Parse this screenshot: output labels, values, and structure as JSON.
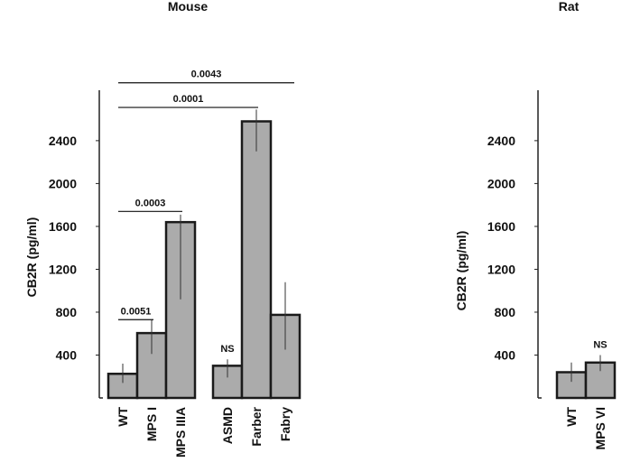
{
  "chart_data": [
    {
      "type": "bar",
      "title": "Mouse",
      "ylabel": "CB2R (pg/ml)",
      "yticks": [
        400,
        800,
        1200,
        1600,
        2000,
        2400
      ],
      "ylim": [
        0,
        2900
      ],
      "categories": [
        "WT",
        "MPS I",
        "MPS IIIA",
        "ASMD",
        "Farber",
        "Fabry"
      ],
      "values": [
        225,
        605,
        1640,
        300,
        2580,
        775
      ],
      "error_low": [
        140,
        410,
        920,
        190,
        2300,
        450
      ],
      "error_high": [
        320,
        730,
        1710,
        360,
        2690,
        1080
      ],
      "bar_labels": [
        "",
        "",
        "",
        "NS",
        "",
        ""
      ],
      "comparisons": [
        {
          "from": "WT",
          "to": "MPS I",
          "label": "0.0051",
          "y": 730
        },
        {
          "from": "WT",
          "to": "MPS IIIA",
          "label": "0.0003",
          "y": 1740
        },
        {
          "from": "WT",
          "to": "Farber",
          "label": "0.0001",
          "y": 2710
        },
        {
          "from": "WT",
          "to": "Fabry",
          "label": "0.0043",
          "y": 2940
        }
      ]
    },
    {
      "type": "bar",
      "title": "Rat",
      "ylabel": "CB2R (pg/ml)",
      "yticks": [
        400,
        800,
        1200,
        1600,
        2000,
        2400
      ],
      "ylim": [
        0,
        2900
      ],
      "categories": [
        "WT",
        "MPS VI"
      ],
      "values": [
        240,
        330
      ],
      "error_low": [
        150,
        250
      ],
      "error_high": [
        330,
        400
      ],
      "bar_labels": [
        "",
        "NS"
      ],
      "comparisons": []
    }
  ],
  "style": {
    "bar_color": "#ababab",
    "edge_color": "#1a1a1a",
    "axis_color": "#222222"
  }
}
